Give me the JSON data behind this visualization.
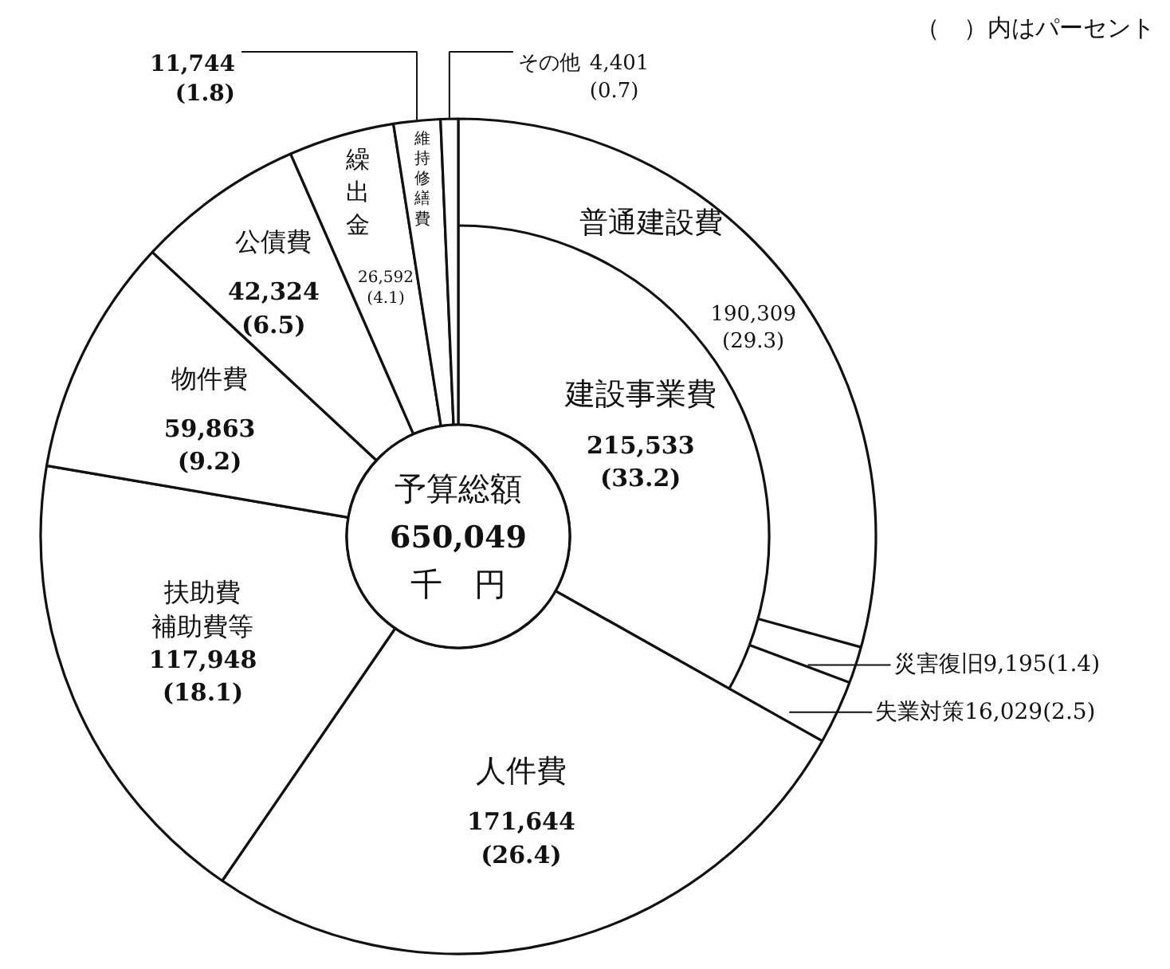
{
  "chart_data": [
    {
      "type": "donut",
      "annotations": [
        "予算総額\n650,049\n千　円",
        "（　）内はパーセント"
      ],
      "categories": [
        "建設事業費",
        "人件費",
        "扶助費補助費等",
        "物件費",
        "公債費",
        "繰出金",
        "維持修繕費",
        "その他"
      ],
      "values": [
        215533,
        171644,
        117948,
        59863,
        42324,
        26592,
        11744,
        4401
      ],
      "value_labels": [
        "215,533 (33.2)",
        "171,644 (26.4)",
        "117,948 (18.1)",
        "59,863 (9.2)",
        "42,324 (6.5)",
        "26,592 (4.1)",
        "11,744 (1.8)",
        "4,401 (0.7)"
      ],
      "colors": [
        "#ffffff",
        "#ffffff",
        "#ffffff",
        "#ffffff",
        "#ffffff",
        "#ffffff",
        "#ffffff",
        "#ffffff"
      ]
    },
    {
      "type": "other",
      "categories": [
        "普通建設費",
        "災害復旧",
        "失業対策"
      ],
      "values": [
        190309,
        9195,
        16029
      ],
      "value_labels": [
        "190,309 (29.3)",
        "9,195(1.4)",
        "16,029(2.5)"
      ],
      "colors": [
        "#ffffff",
        "#ffffff",
        "#ffffff"
      ]
    }
  ]
}
